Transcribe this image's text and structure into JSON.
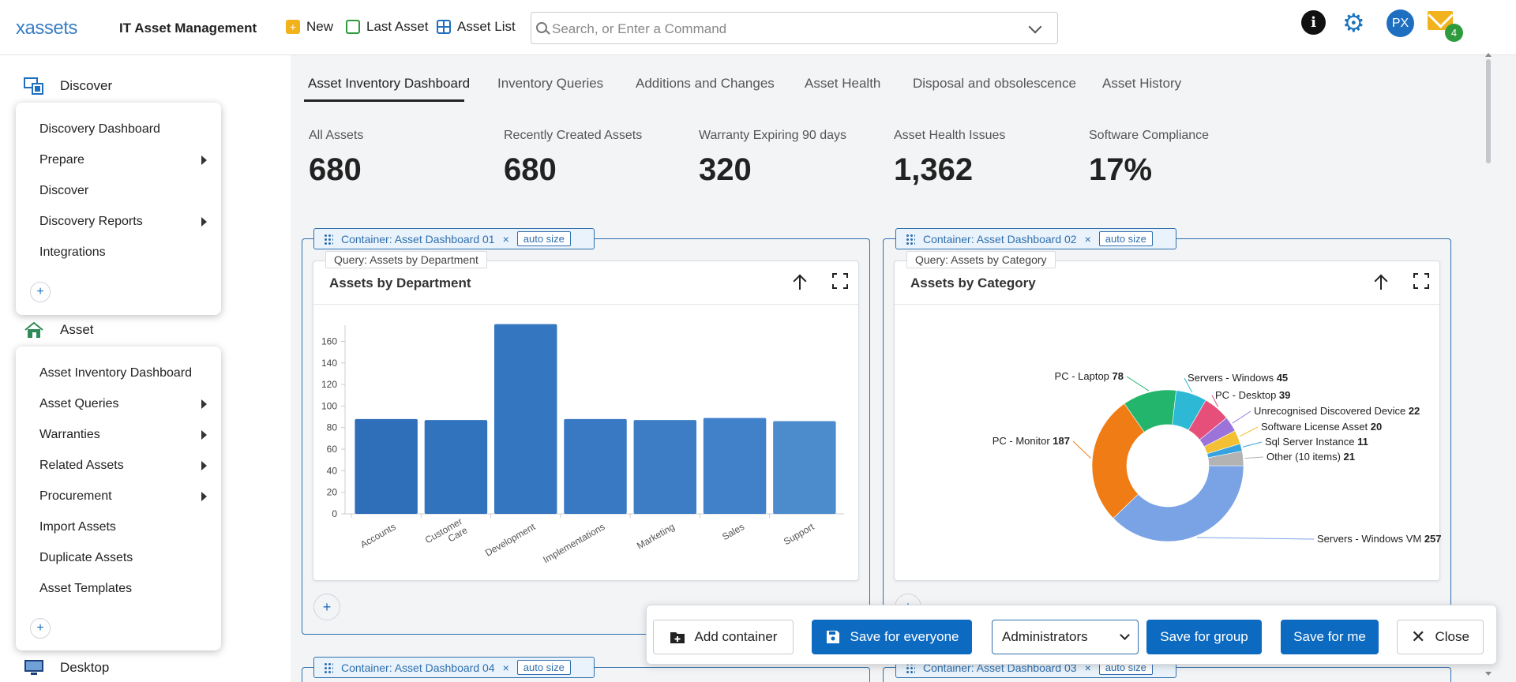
{
  "header": {
    "logo": "xassets",
    "app_title": "IT Asset Management",
    "new_label": "New",
    "last_asset_label": "Last Asset",
    "asset_list_label": "Asset List",
    "search_placeholder": "Search, or Enter a Command",
    "avatar_initials": "PX",
    "mail_count": "4",
    "info_glyph": "i",
    "gear_glyph": "⚙"
  },
  "sidebar": {
    "discover": {
      "label": "Discover",
      "items": [
        {
          "label": "Discovery Dashboard",
          "submenu": false
        },
        {
          "label": "Prepare",
          "submenu": true
        },
        {
          "label": "Discover",
          "submenu": false
        },
        {
          "label": "Discovery Reports",
          "submenu": true
        },
        {
          "label": "Integrations",
          "submenu": false
        }
      ]
    },
    "asset": {
      "label": "Asset",
      "items": [
        {
          "label": "Asset Inventory Dashboard",
          "submenu": false
        },
        {
          "label": "Asset Queries",
          "submenu": true
        },
        {
          "label": "Warranties",
          "submenu": true
        },
        {
          "label": "Related Assets",
          "submenu": true
        },
        {
          "label": "Procurement",
          "submenu": true
        },
        {
          "label": "Import Assets",
          "submenu": false
        },
        {
          "label": "Duplicate Assets",
          "submenu": false
        },
        {
          "label": "Asset Templates",
          "submenu": false
        }
      ]
    },
    "desktop": {
      "label": "Desktop"
    },
    "plus": "+"
  },
  "tabs": [
    {
      "label": "Asset Inventory Dashboard",
      "active": true
    },
    {
      "label": "Inventory Queries",
      "active": false
    },
    {
      "label": "Additions and Changes",
      "active": false
    },
    {
      "label": "Asset Health",
      "active": false
    },
    {
      "label": "Disposal and obsolescence",
      "active": false
    },
    {
      "label": "Asset History",
      "active": false
    }
  ],
  "stats": [
    {
      "label": "All Assets",
      "value": "680"
    },
    {
      "label": "Recently Created Assets",
      "value": "680"
    },
    {
      "label": "Warranty Expiring 90 days",
      "value": "320"
    },
    {
      "label": "Asset Health Issues",
      "value": "1,362"
    },
    {
      "label": "Software Compliance",
      "value": "17%"
    }
  ],
  "containers": {
    "c1": {
      "title": "Container: Asset Dashboard 01",
      "close": "×",
      "auto": "auto size"
    },
    "c2": {
      "title": "Container: Asset Dashboard 02",
      "close": "×",
      "auto": "auto size"
    },
    "c3": {
      "title": "Container: Asset Dashboard 03",
      "close": "×",
      "auto": "auto size"
    },
    "c4": {
      "title": "Container: Asset Dashboard 04",
      "close": "×",
      "auto": "auto size"
    }
  },
  "cards": {
    "dept": {
      "query": "Query: Assets by Department",
      "title": "Assets by Department"
    },
    "cat": {
      "query": "Query: Assets by Category",
      "title": "Assets by Category"
    },
    "add": "+"
  },
  "chart_data": [
    {
      "type": "bar",
      "title": "Assets by Department",
      "categories": [
        "Accounts",
        "Customer Care",
        "Development",
        "Implementations",
        "Marketing",
        "Sales",
        "Support"
      ],
      "category_lines": [
        [
          "Accounts"
        ],
        [
          "Customer",
          "Care"
        ],
        [
          "Development"
        ],
        [
          "Implementations"
        ],
        [
          "Marketing"
        ],
        [
          "Sales"
        ],
        [
          "Support"
        ]
      ],
      "values": [
        88,
        87,
        176,
        88,
        87,
        89,
        86
      ],
      "ylim": [
        0,
        175
      ],
      "yticks": [
        0,
        20,
        40,
        60,
        80,
        100,
        120,
        140,
        160
      ],
      "bar_colors": [
        "#2f6fba",
        "#3273bd",
        "#3576c0",
        "#3979c3",
        "#3d7dc6",
        "#4181c9",
        "#4c8ccd"
      ],
      "xlabel": "",
      "ylabel": ""
    },
    {
      "type": "pie",
      "title": "Assets by Category",
      "donut": true,
      "slices": [
        {
          "label": "Servers - Windows VM",
          "value": 257,
          "color": "#7aa3e5"
        },
        {
          "label": "PC - Monitor",
          "value": 187,
          "color": "#f07c15"
        },
        {
          "label": "PC - Laptop",
          "value": 78,
          "color": "#23b56b"
        },
        {
          "label": "Servers - Windows",
          "value": 45,
          "color": "#2db9d6"
        },
        {
          "label": "PC - Desktop",
          "value": 39,
          "color": "#e54f7a"
        },
        {
          "label": "Unrecognised Discovered Device",
          "value": 22,
          "color": "#9b73d9"
        },
        {
          "label": "Software License Asset",
          "value": 20,
          "color": "#f2c032"
        },
        {
          "label": "Sql Server Instance",
          "value": 11,
          "color": "#36a3e0"
        },
        {
          "label": "Other (10 items)",
          "value": 21,
          "color": "#b3b3b3"
        }
      ]
    }
  ],
  "actions": {
    "add_container": "Add container",
    "save_everyone": "Save for everyone",
    "group_select": "Administrators",
    "save_group": "Save for group",
    "save_me": "Save for me",
    "close": "Close"
  }
}
